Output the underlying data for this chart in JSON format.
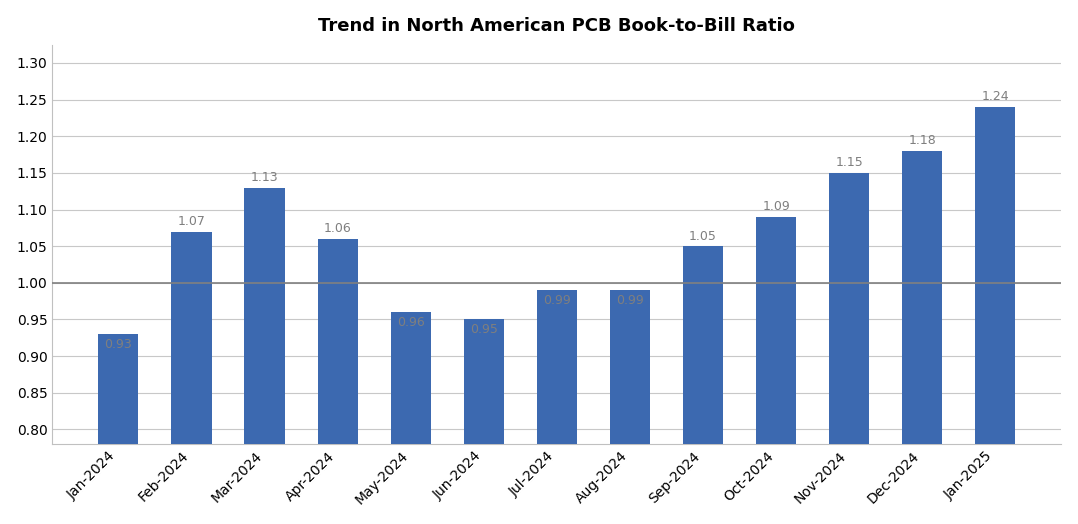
{
  "title": "Trend in North American PCB Book-to-Bill Ratio",
  "categories": [
    "Jan-2024",
    "Feb-2024",
    "Mar-2024",
    "Apr-2024",
    "May-2024",
    "Jun-2024",
    "Jul-2024",
    "Aug-2024",
    "Sep-2024",
    "Oct-2024",
    "Nov-2024",
    "Dec-2024",
    "Jan-2025"
  ],
  "values": [
    0.93,
    1.07,
    1.13,
    1.06,
    0.96,
    0.95,
    0.99,
    0.99,
    1.05,
    1.09,
    1.15,
    1.18,
    1.24
  ],
  "bar_color": "#3C69B0",
  "label_color": "#7F7F7F",
  "ylim_min": 0.78,
  "ylim_max": 1.325,
  "yticks": [
    0.8,
    0.85,
    0.9,
    0.95,
    1.0,
    1.05,
    1.1,
    1.15,
    1.2,
    1.25,
    1.3
  ],
  "hline_y": 1.0,
  "hline_color": "#808080",
  "background_color": "#FFFFFF",
  "grid_color": "#C8C8C8",
  "title_fontsize": 13,
  "label_fontsize": 9,
  "tick_fontsize": 10,
  "bar_bottom": 0.78
}
